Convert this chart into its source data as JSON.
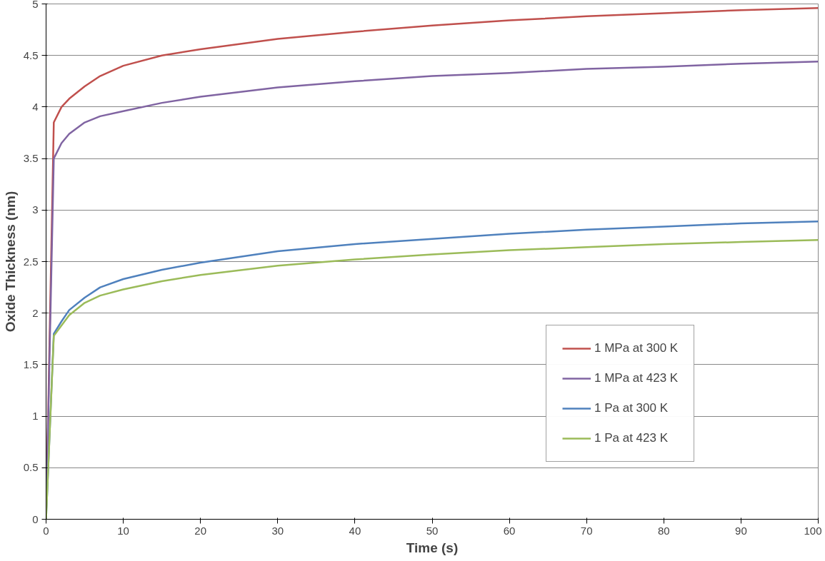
{
  "chart_data": {
    "type": "line",
    "xlabel": "Time (s)",
    "ylabel": "Oxide Thickness (nm)",
    "x": [
      0,
      1,
      2,
      3,
      5,
      7,
      10,
      15,
      20,
      30,
      40,
      50,
      60,
      70,
      80,
      90,
      100
    ],
    "series": [
      {
        "name": "1 MPa at 300 K",
        "color": "#c0504d",
        "values": [
          0,
          3.85,
          4.0,
          4.08,
          4.2,
          4.3,
          4.4,
          4.5,
          4.56,
          4.66,
          4.73,
          4.79,
          4.84,
          4.88,
          4.91,
          4.94,
          4.96
        ]
      },
      {
        "name": "1 MPa at 423 K",
        "color": "#8064a2",
        "values": [
          0,
          3.5,
          3.65,
          3.74,
          3.85,
          3.91,
          3.96,
          4.04,
          4.1,
          4.19,
          4.25,
          4.3,
          4.33,
          4.37,
          4.39,
          4.42,
          4.44
        ]
      },
      {
        "name": "1 Pa at 300 K",
        "color": "#4f81bd",
        "values": [
          0,
          1.8,
          1.92,
          2.03,
          2.15,
          2.25,
          2.33,
          2.42,
          2.49,
          2.6,
          2.67,
          2.72,
          2.77,
          2.81,
          2.84,
          2.87,
          2.89
        ]
      },
      {
        "name": "1 Pa at 423 K",
        "color": "#9bbb59",
        "values": [
          0,
          1.78,
          1.88,
          1.98,
          2.1,
          2.17,
          2.23,
          2.31,
          2.37,
          2.46,
          2.52,
          2.57,
          2.61,
          2.64,
          2.67,
          2.69,
          2.71
        ]
      }
    ],
    "xlim": [
      0,
      100
    ],
    "xticks": [
      0,
      10,
      20,
      30,
      40,
      50,
      60,
      70,
      80,
      90,
      100
    ],
    "ylim": [
      0,
      5
    ],
    "yticks": [
      0,
      0.5,
      1,
      1.5,
      2,
      2.5,
      3,
      3.5,
      4,
      4.5,
      5
    ],
    "grid": "y",
    "legend": "right",
    "marker": "none",
    "line_style": "solid"
  }
}
